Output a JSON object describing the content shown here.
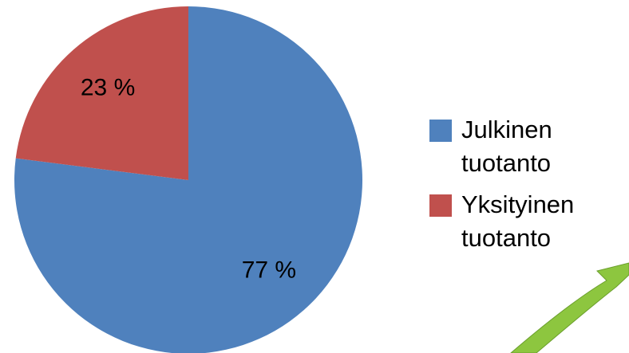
{
  "chart_data": {
    "type": "pie",
    "categories": [
      "Julkinen tuotanto",
      "Yksityinen tuotanto"
    ],
    "values": [
      77,
      23
    ],
    "value_labels": [
      "77 %",
      "23 %"
    ],
    "colors": [
      "#4f81bd",
      "#c0504d"
    ]
  }
}
